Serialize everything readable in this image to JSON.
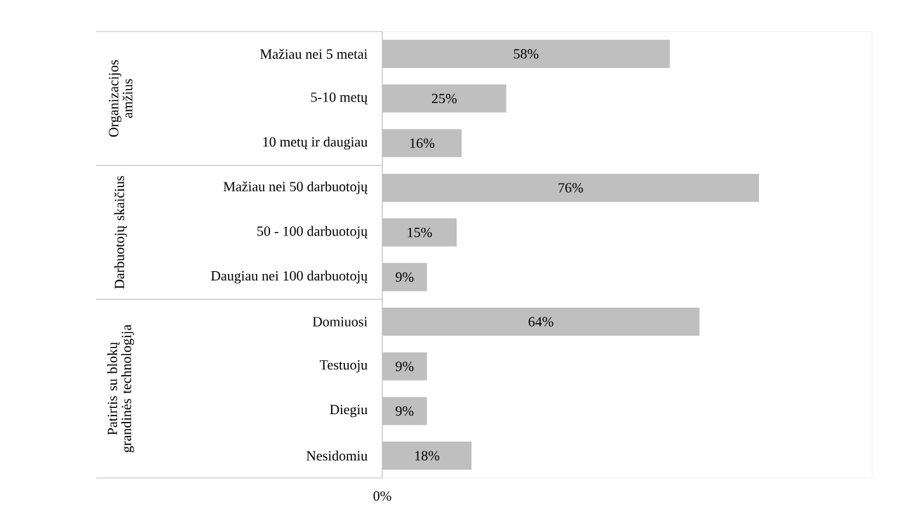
{
  "chart_data": {
    "type": "bar",
    "orientation": "horizontal",
    "categories": [
      "Mažiau nei 5 metai",
      "5-10 metų",
      "10 metų ir daugiau",
      "Mažiau nei 50 darbuotojų",
      "50 - 100 darbuotojų",
      "Daugiau nei 100 darbuotojų",
      "Domiuosi",
      "Testuoju",
      "Diegiu",
      "Nesidomiu"
    ],
    "values": [
      58,
      25,
      16,
      76,
      15,
      9,
      64,
      9,
      9,
      18
    ],
    "value_labels": [
      "58%",
      "25%",
      "16%",
      "76%",
      "15%",
      "9%",
      "64%",
      "9%",
      "9%",
      "18%"
    ],
    "color": "#bfbfbf",
    "annotations": [
      "Organizacijos amžius",
      "Darbuotojų skaičius",
      "Patirtis su blokų grandinės technologija",
      "0%"
    ]
  }
}
